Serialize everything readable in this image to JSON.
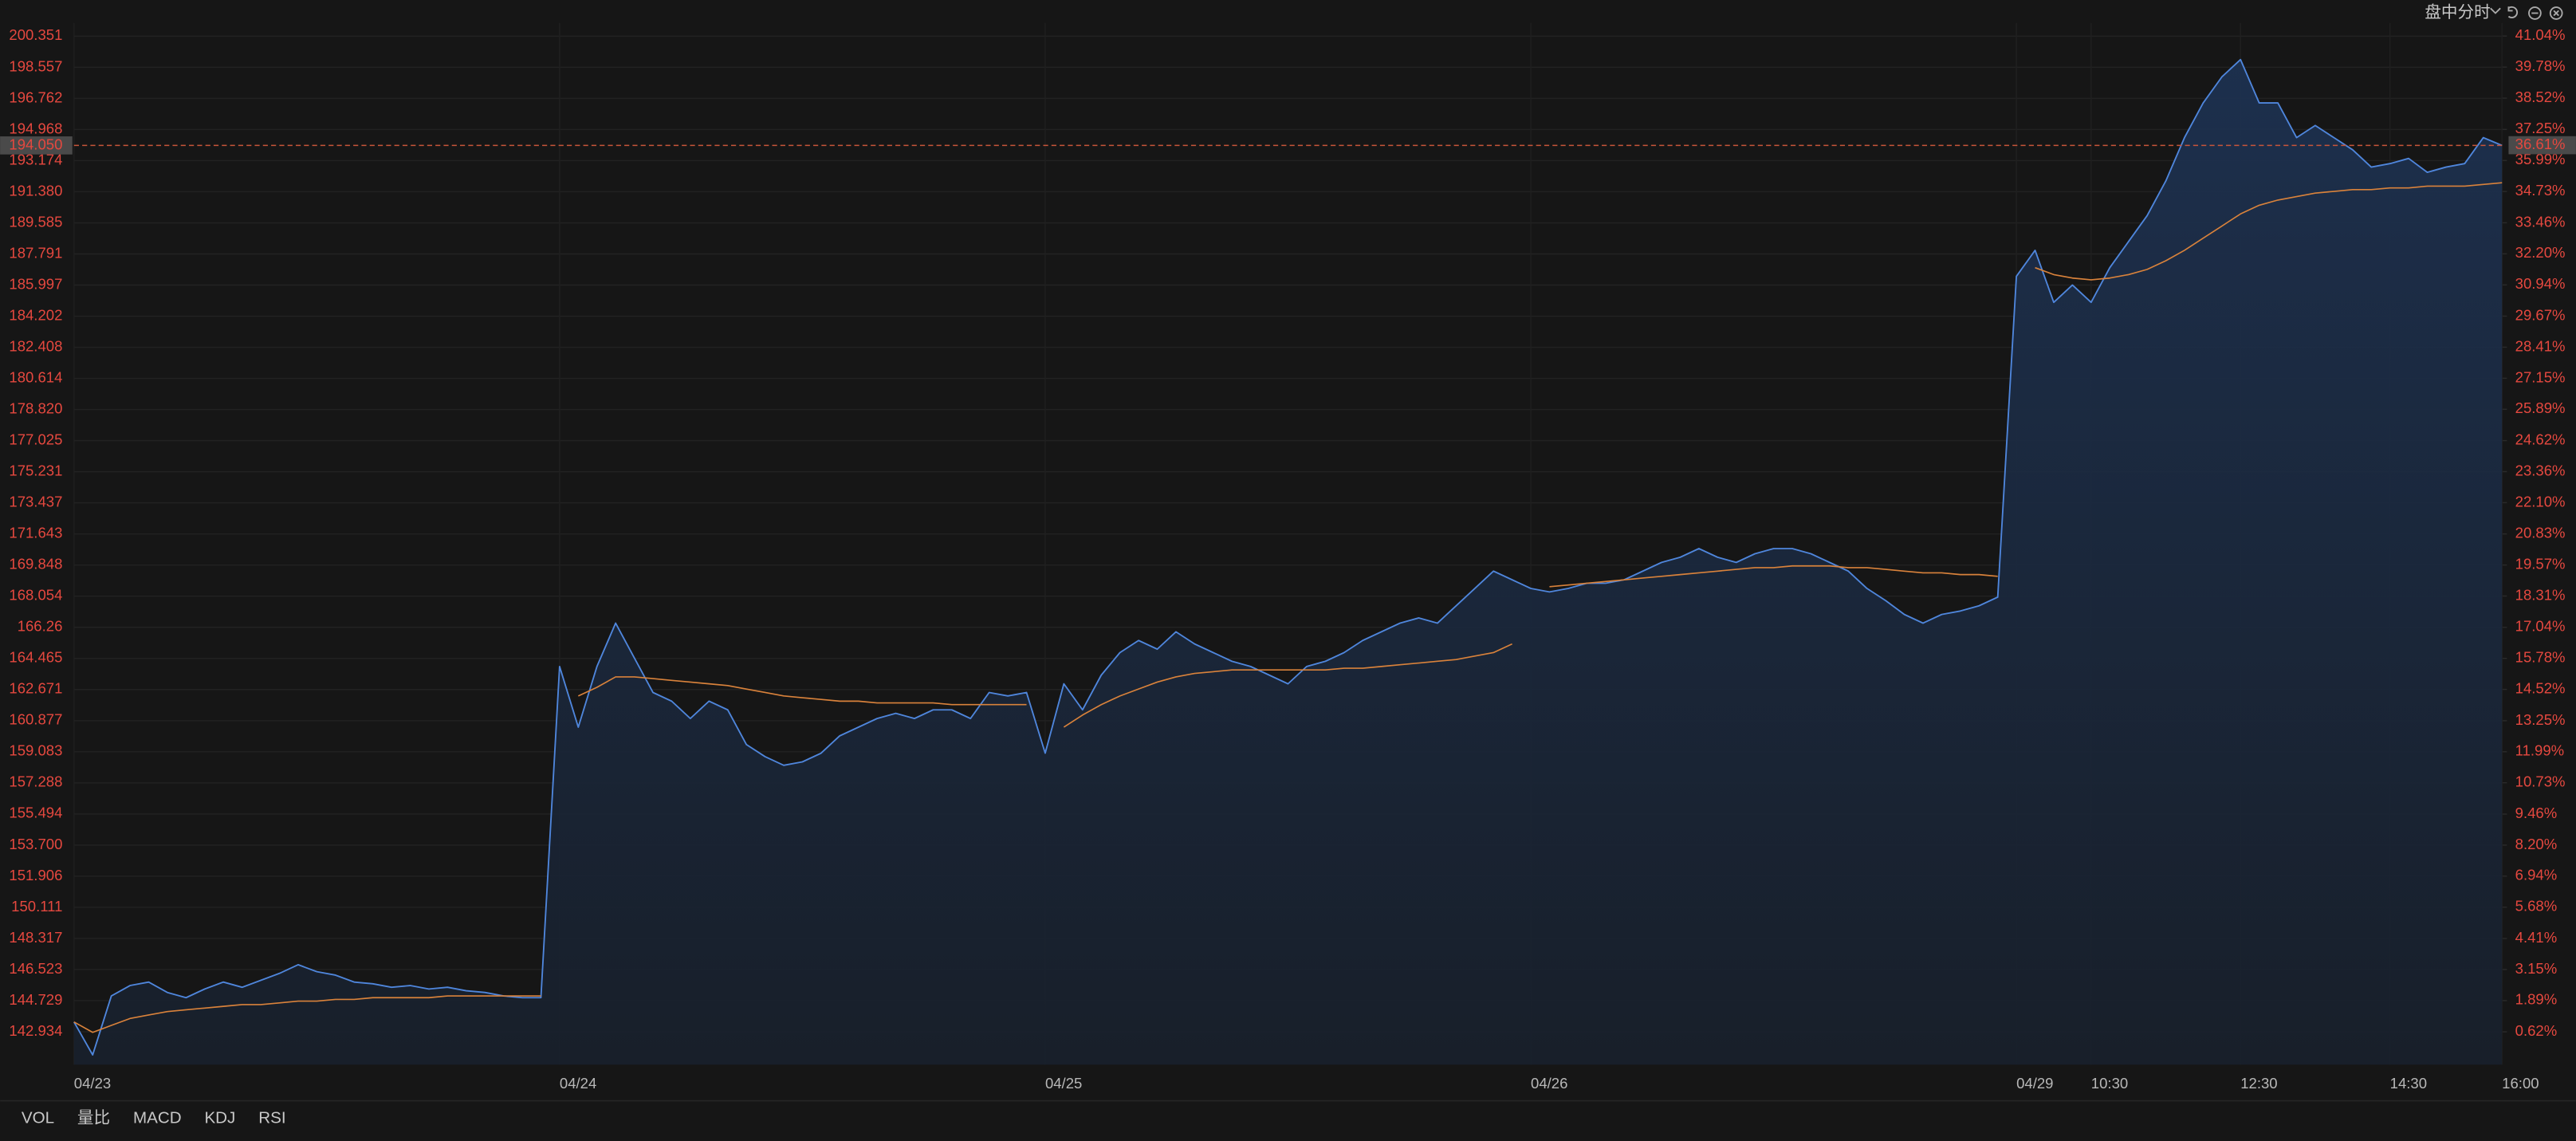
{
  "header": {
    "mode_label": "盘中分时"
  },
  "indicator_tabs": [
    "VOL",
    "量比",
    "MACD",
    "KDJ",
    "RSI"
  ],
  "chart_data": {
    "type": "line",
    "fill_area": true,
    "grid": true,
    "axis_color": "#e5483f",
    "x": [
      0,
      15,
      30,
      45,
      60,
      75,
      90,
      105,
      120,
      135,
      150,
      165,
      180,
      195,
      210,
      225,
      240,
      255,
      270,
      285,
      300,
      315,
      330,
      345,
      360,
      375,
      390,
      405,
      420,
      435,
      450,
      465,
      480,
      495,
      510,
      525,
      540,
      555,
      570,
      585,
      600,
      615,
      630,
      645,
      660,
      675,
      690,
      705,
      720,
      735,
      750,
      765,
      780,
      795,
      810,
      825,
      840,
      855,
      870,
      885,
      900,
      915,
      930,
      945,
      960,
      975,
      990,
      1005,
      1020,
      1035,
      1050,
      1065,
      1080,
      1095,
      1110,
      1125,
      1140,
      1155,
      1170,
      1185,
      1200,
      1215,
      1230,
      1245,
      1260,
      1275,
      1290,
      1305,
      1320,
      1335,
      1350,
      1365,
      1380,
      1395,
      1410,
      1425,
      1440,
      1455,
      1470,
      1485,
      1500,
      1515,
      1530,
      1545,
      1560,
      1575,
      1590,
      1605,
      1620,
      1635,
      1650,
      1665,
      1680,
      1695,
      1710,
      1725,
      1740,
      1755,
      1770,
      1785,
      1800,
      1815,
      1830,
      1845,
      1860,
      1875,
      1890,
      1905,
      1920,
      1935,
      1950
    ],
    "series": [
      {
        "color": "#4f86dc",
        "values": [
          143.5,
          141.6,
          145.0,
          145.6,
          145.8,
          145.2,
          144.9,
          145.4,
          145.8,
          145.5,
          145.9,
          146.3,
          146.8,
          146.4,
          146.2,
          145.8,
          145.7,
          145.5,
          145.6,
          145.4,
          145.5,
          145.3,
          145.2,
          145.0,
          144.9,
          144.9,
          164.0,
          160.5,
          164.0,
          166.5,
          164.5,
          162.5,
          162.0,
          161.0,
          162.0,
          161.5,
          159.5,
          158.8,
          158.3,
          158.5,
          159.0,
          160.0,
          160.5,
          161.0,
          161.3,
          161.0,
          161.5,
          161.5,
          161.0,
          162.5,
          162.3,
          162.5,
          159.0,
          163.0,
          161.5,
          163.5,
          164.8,
          165.5,
          165.0,
          166.0,
          165.3,
          164.8,
          164.3,
          164.0,
          163.5,
          163.0,
          164.0,
          164.3,
          164.8,
          165.5,
          166.0,
          166.5,
          166.8,
          166.5,
          167.5,
          168.5,
          169.5,
          169.0,
          168.5,
          168.3,
          168.5,
          168.8,
          168.8,
          169.0,
          169.5,
          170.0,
          170.3,
          170.8,
          170.3,
          170.0,
          170.5,
          170.8,
          170.8,
          170.5,
          170.0,
          169.5,
          168.5,
          167.8,
          167.0,
          166.5,
          167.0,
          167.2,
          167.5,
          168.0,
          186.5,
          188.0,
          185.0,
          186.0,
          185.0,
          187.0,
          188.5,
          190.0,
          192.0,
          194.5,
          196.5,
          198.0,
          199.0,
          196.5,
          196.5,
          194.5,
          195.2,
          194.5,
          193.8,
          192.8,
          193.0,
          193.3,
          192.5,
          192.8,
          193.0,
          194.5,
          194.05
        ]
      },
      {
        "color": "#d9823b",
        "values": [
          143.5,
          142.9,
          143.3,
          143.7,
          143.9,
          144.1,
          144.2,
          144.3,
          144.4,
          144.5,
          144.5,
          144.6,
          144.7,
          144.7,
          144.8,
          144.8,
          144.9,
          144.9,
          144.9,
          144.9,
          145.0,
          145.0,
          145.0,
          145.0,
          145.0,
          145.0,
          null,
          162.3,
          162.8,
          163.4,
          163.4,
          163.3,
          163.2,
          163.1,
          163.0,
          162.9,
          162.7,
          162.5,
          162.3,
          162.2,
          162.1,
          162.0,
          162.0,
          161.9,
          161.9,
          161.9,
          161.9,
          161.8,
          161.8,
          161.8,
          161.8,
          161.8,
          null,
          160.5,
          161.2,
          161.8,
          162.3,
          162.7,
          163.1,
          163.4,
          163.6,
          163.7,
          163.8,
          163.8,
          163.8,
          163.8,
          163.8,
          163.8,
          163.9,
          163.9,
          164.0,
          164.1,
          164.2,
          164.3,
          164.4,
          164.6,
          164.8,
          165.3,
          null,
          168.6,
          168.7,
          168.8,
          168.9,
          169.0,
          169.1,
          169.2,
          169.3,
          169.4,
          169.5,
          169.6,
          169.7,
          169.7,
          169.8,
          169.8,
          169.8,
          169.7,
          169.7,
          169.6,
          169.5,
          169.4,
          169.4,
          169.3,
          169.3,
          169.2,
          null,
          187.0,
          186.6,
          186.4,
          186.3,
          186.4,
          186.6,
          186.9,
          187.4,
          188.0,
          188.7,
          189.4,
          190.1,
          190.6,
          190.9,
          191.1,
          191.3,
          191.4,
          191.5,
          191.5,
          191.6,
          191.6,
          191.7,
          191.7,
          191.7,
          191.8,
          191.9
        ]
      }
    ],
    "xlim": [
      0,
      1950
    ],
    "xticks": [
      {
        "value": 0,
        "label": "04/23"
      },
      {
        "value": 390,
        "label": "04/24"
      },
      {
        "value": 780,
        "label": "04/25"
      },
      {
        "value": 1170,
        "label": "04/26"
      },
      {
        "value": 1560,
        "label": "04/29"
      },
      {
        "value": 1620,
        "label": "10:30"
      },
      {
        "value": 1740,
        "label": "12:30"
      },
      {
        "value": 1860,
        "label": "14:30"
      },
      {
        "value": 1950,
        "label": "16:00"
      }
    ],
    "ylim": [
      141.04,
      201.11
    ],
    "yticks": [
      200.351,
      198.557,
      196.762,
      194.968,
      193.174,
      {
        "value": 191.38,
        "label": "191.380"
      },
      189.585,
      187.791,
      185.997,
      184.202,
      182.408,
      180.614,
      {
        "value": 178.82,
        "label": "178.820"
      },
      177.025,
      175.231,
      173.437,
      171.643,
      169.848,
      168.054,
      166.26,
      164.465,
      162.671,
      160.877,
      159.083,
      157.288,
      155.494,
      {
        "value": 153.7,
        "label": "153.700"
      },
      151.906,
      150.111,
      148.317,
      146.523,
      144.729,
      142.934
    ],
    "y2lim": [
      -0.71,
      41.57
    ],
    "y2ticks": [
      {
        "value": 41.04,
        "label": "41.04%"
      },
      {
        "value": 39.78,
        "label": "39.78%"
      },
      {
        "value": 38.52,
        "label": "38.52%"
      },
      {
        "value": 37.25,
        "label": "37.25%"
      },
      {
        "value": 35.99,
        "label": "35.99%"
      },
      {
        "value": 34.73,
        "label": "34.73%"
      },
      {
        "value": 33.46,
        "label": "33.46%"
      },
      {
        "value": 32.2,
        "label": "32.20%"
      },
      {
        "value": 30.94,
        "label": "30.94%"
      },
      {
        "value": 29.67,
        "label": "29.67%"
      },
      {
        "value": 28.41,
        "label": "28.41%"
      },
      {
        "value": 27.15,
        "label": "27.15%"
      },
      {
        "value": 25.89,
        "label": "25.89%"
      },
      {
        "value": 24.62,
        "label": "24.62%"
      },
      {
        "value": 23.36,
        "label": "23.36%"
      },
      {
        "value": 22.1,
        "label": "22.10%"
      },
      {
        "value": 20.83,
        "label": "20.83%"
      },
      {
        "value": 19.57,
        "label": "19.57%"
      },
      {
        "value": 18.31,
        "label": "18.31%"
      },
      {
        "value": 17.04,
        "label": "17.04%"
      },
      {
        "value": 15.78,
        "label": "15.78%"
      },
      {
        "value": 14.52,
        "label": "14.52%"
      },
      {
        "value": 13.25,
        "label": "13.25%"
      },
      {
        "value": 11.99,
        "label": "11.99%"
      },
      {
        "value": 10.73,
        "label": "10.73%"
      },
      {
        "value": 9.46,
        "label": "9.46%"
      },
      {
        "value": 8.2,
        "label": "8.20%"
      },
      {
        "value": 6.94,
        "label": "6.94%"
      },
      {
        "value": 5.68,
        "label": "5.68%"
      },
      {
        "value": 4.41,
        "label": "4.41%"
      },
      {
        "value": 3.15,
        "label": "3.15%"
      },
      {
        "value": 1.89,
        "label": "1.89%"
      },
      {
        "value": 0.62,
        "label": "0.62%"
      }
    ],
    "last_price": {
      "value": 194.05,
      "label": "194.050"
    },
    "last_change": {
      "value": 36.61,
      "label": "36.61%"
    }
  }
}
